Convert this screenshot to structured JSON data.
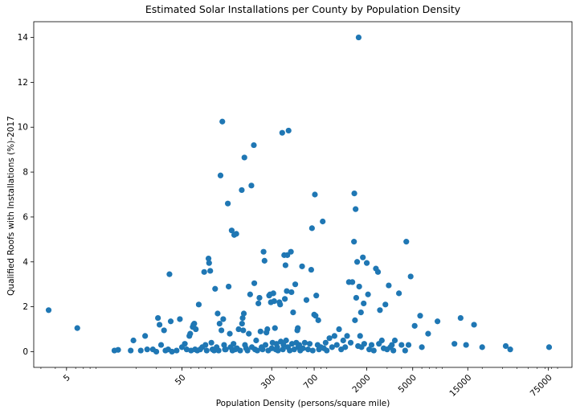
{
  "chart_data": {
    "type": "scatter",
    "title": "Estimated Solar Installations per County by Population Density",
    "xlabel": "Population Density (persons/square mile)",
    "ylabel": "Qualified Roofs with Installations (%)-2017",
    "x_scale": "log",
    "xlim": [
      2.6,
      120000
    ],
    "ylim": [
      -0.7,
      14.7
    ],
    "x_ticks": [
      5,
      50,
      300,
      700,
      2000,
      5000,
      15000,
      75000
    ],
    "x_tick_labels": [
      "5",
      "50",
      "300",
      "700",
      "2000",
      "5000",
      "15000",
      "75000"
    ],
    "y_ticks": [
      0,
      2,
      4,
      6,
      8,
      10,
      12,
      14
    ],
    "y_tick_labels": [
      "0",
      "2",
      "4",
      "6",
      "8",
      "10",
      "12",
      "14"
    ],
    "marker_color": "#1f77b4",
    "grid": false,
    "points": [
      [
        3.5,
        1.85
      ],
      [
        6.2,
        1.05
      ],
      [
        13,
        0.05
      ],
      [
        14,
        0.08
      ],
      [
        18,
        0.05
      ],
      [
        19,
        0.5
      ],
      [
        22,
        0.05
      ],
      [
        24,
        0.7
      ],
      [
        25,
        0.1
      ],
      [
        28,
        0.1
      ],
      [
        30,
        0.0
      ],
      [
        31,
        1.5
      ],
      [
        32,
        1.2
      ],
      [
        33,
        0.3
      ],
      [
        35,
        0.95
      ],
      [
        36,
        0.05
      ],
      [
        38,
        0.1
      ],
      [
        39,
        3.45
      ],
      [
        40,
        1.35
      ],
      [
        41,
        0.0
      ],
      [
        45,
        0.05
      ],
      [
        48,
        1.45
      ],
      [
        50,
        0.2
      ],
      [
        53,
        0.35
      ],
      [
        55,
        0.1
      ],
      [
        58,
        0.7
      ],
      [
        59,
        0.8
      ],
      [
        60,
        0.05
      ],
      [
        62,
        1.1
      ],
      [
        63,
        1.2
      ],
      [
        64,
        1.25
      ],
      [
        65,
        0.1
      ],
      [
        66,
        1.0
      ],
      [
        68,
        0.05
      ],
      [
        70,
        2.1
      ],
      [
        72,
        0.1
      ],
      [
        75,
        0.2
      ],
      [
        78,
        3.55
      ],
      [
        80,
        0.3
      ],
      [
        82,
        0.05
      ],
      [
        85,
        4.15
      ],
      [
        86,
        3.95
      ],
      [
        88,
        3.6
      ],
      [
        90,
        0.4
      ],
      [
        92,
        0.1
      ],
      [
        95,
        0.05
      ],
      [
        97,
        2.8
      ],
      [
        100,
        0.2
      ],
      [
        102,
        1.7
      ],
      [
        104,
        0.05
      ],
      [
        106,
        1.25
      ],
      [
        108,
        7.85
      ],
      [
        110,
        0.95
      ],
      [
        112,
        10.25
      ],
      [
        114,
        1.45
      ],
      [
        116,
        0.3
      ],
      [
        118,
        0.1
      ],
      [
        120,
        0.1
      ],
      [
        125,
        6.6
      ],
      [
        127,
        2.9
      ],
      [
        130,
        0.8
      ],
      [
        132,
        0.2
      ],
      [
        135,
        5.4
      ],
      [
        137,
        0.05
      ],
      [
        140,
        0.35
      ],
      [
        142,
        5.2
      ],
      [
        145,
        0.1
      ],
      [
        148,
        5.25
      ],
      [
        150,
        0.15
      ],
      [
        155,
        1.0
      ],
      [
        160,
        0.05
      ],
      [
        165,
        7.2
      ],
      [
        166,
        1.25
      ],
      [
        168,
        1.5
      ],
      [
        170,
        0.95
      ],
      [
        172,
        1.7
      ],
      [
        174,
        8.65
      ],
      [
        176,
        0.3
      ],
      [
        180,
        0.15
      ],
      [
        185,
        0.05
      ],
      [
        190,
        0.8
      ],
      [
        195,
        2.55
      ],
      [
        200,
        7.4
      ],
      [
        202,
        0.2
      ],
      [
        210,
        9.2
      ],
      [
        212,
        3.05
      ],
      [
        215,
        0.1
      ],
      [
        220,
        0.5
      ],
      [
        225,
        0.05
      ],
      [
        230,
        2.15
      ],
      [
        235,
        2.4
      ],
      [
        240,
        0.9
      ],
      [
        245,
        0.2
      ],
      [
        250,
        0.1
      ],
      [
        255,
        4.45
      ],
      [
        260,
        4.05
      ],
      [
        265,
        0.3
      ],
      [
        270,
        0.85
      ],
      [
        275,
        1.0
      ],
      [
        280,
        0.05
      ],
      [
        285,
        2.5
      ],
      [
        290,
        2.55
      ],
      [
        295,
        2.2
      ],
      [
        300,
        0.15
      ],
      [
        305,
        0.4
      ],
      [
        310,
        2.6
      ],
      [
        315,
        2.25
      ],
      [
        320,
        1.05
      ],
      [
        325,
        0.1
      ],
      [
        330,
        0.35
      ],
      [
        335,
        0.2
      ],
      [
        340,
        0.05
      ],
      [
        350,
        2.2
      ],
      [
        355,
        2.1
      ],
      [
        360,
        0.45
      ],
      [
        370,
        9.75
      ],
      [
        375,
        0.1
      ],
      [
        380,
        0.3
      ],
      [
        385,
        4.3
      ],
      [
        390,
        2.35
      ],
      [
        395,
        3.85
      ],
      [
        400,
        0.5
      ],
      [
        405,
        2.7
      ],
      [
        410,
        4.3
      ],
      [
        415,
        0.2
      ],
      [
        420,
        9.85
      ],
      [
        430,
        0.05
      ],
      [
        440,
        4.45
      ],
      [
        445,
        2.65
      ],
      [
        450,
        0.35
      ],
      [
        460,
        1.75
      ],
      [
        470,
        0.1
      ],
      [
        480,
        3.0
      ],
      [
        490,
        0.4
      ],
      [
        500,
        0.95
      ],
      [
        505,
        1.05
      ],
      [
        510,
        0.2
      ],
      [
        520,
        0.3
      ],
      [
        530,
        0.05
      ],
      [
        550,
        3.8
      ],
      [
        560,
        0.15
      ],
      [
        580,
        0.4
      ],
      [
        600,
        2.3
      ],
      [
        620,
        0.1
      ],
      [
        640,
        0.35
      ],
      [
        660,
        3.65
      ],
      [
        670,
        5.5
      ],
      [
        680,
        0.05
      ],
      [
        700,
        1.65
      ],
      [
        710,
        7.0
      ],
      [
        720,
        1.6
      ],
      [
        730,
        2.5
      ],
      [
        750,
        0.3
      ],
      [
        760,
        1.4
      ],
      [
        770,
        0.1
      ],
      [
        800,
        0.2
      ],
      [
        830,
        5.8
      ],
      [
        850,
        0.15
      ],
      [
        880,
        0.4
      ],
      [
        900,
        0.05
      ],
      [
        950,
        0.6
      ],
      [
        1000,
        0.2
      ],
      [
        1050,
        0.7
      ],
      [
        1100,
        0.3
      ],
      [
        1150,
        1.0
      ],
      [
        1200,
        0.1
      ],
      [
        1250,
        0.5
      ],
      [
        1300,
        0.2
      ],
      [
        1350,
        0.7
      ],
      [
        1400,
        3.1
      ],
      [
        1450,
        0.4
      ],
      [
        1500,
        3.1
      ],
      [
        1550,
        4.9
      ],
      [
        1560,
        7.05
      ],
      [
        1580,
        1.4
      ],
      [
        1600,
        6.35
      ],
      [
        1620,
        2.4
      ],
      [
        1650,
        4.0
      ],
      [
        1680,
        0.25
      ],
      [
        1700,
        14.0
      ],
      [
        1720,
        2.9
      ],
      [
        1750,
        0.7
      ],
      [
        1780,
        1.75
      ],
      [
        1800,
        0.2
      ],
      [
        1850,
        4.2
      ],
      [
        1880,
        2.15
      ],
      [
        1900,
        0.35
      ],
      [
        2000,
        3.95
      ],
      [
        2050,
        2.55
      ],
      [
        2100,
        0.1
      ],
      [
        2200,
        0.3
      ],
      [
        2300,
        0.05
      ],
      [
        2400,
        3.7
      ],
      [
        2500,
        3.55
      ],
      [
        2550,
        0.35
      ],
      [
        2600,
        1.85
      ],
      [
        2700,
        0.5
      ],
      [
        2800,
        0.15
      ],
      [
        2900,
        2.1
      ],
      [
        3000,
        0.1
      ],
      [
        3100,
        2.95
      ],
      [
        3200,
        0.2
      ],
      [
        3300,
        0.3
      ],
      [
        3400,
        0.05
      ],
      [
        3500,
        0.5
      ],
      [
        3800,
        2.6
      ],
      [
        4000,
        0.3
      ],
      [
        4300,
        0.05
      ],
      [
        4400,
        4.9
      ],
      [
        4600,
        0.3
      ],
      [
        4800,
        3.35
      ],
      [
        5200,
        1.15
      ],
      [
        5800,
        1.6
      ],
      [
        6000,
        0.2
      ],
      [
        6800,
        0.8
      ],
      [
        8200,
        1.35
      ],
      [
        11500,
        0.35
      ],
      [
        13000,
        1.5
      ],
      [
        14500,
        0.3
      ],
      [
        17000,
        1.2
      ],
      [
        20000,
        0.2
      ],
      [
        32000,
        0.25
      ],
      [
        35000,
        0.1
      ],
      [
        76000,
        0.2
      ]
    ]
  }
}
